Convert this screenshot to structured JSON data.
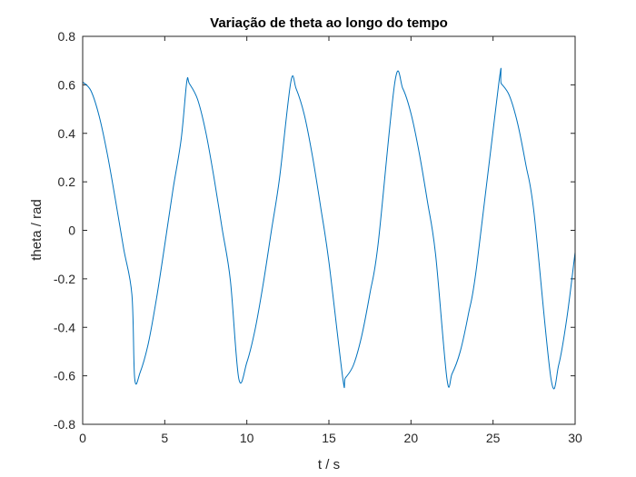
{
  "chart_data": {
    "type": "line",
    "title": "Variação de theta ao longo do tempo",
    "xlabel": "t / s",
    "ylabel": "theta / rad",
    "xlim": [
      0,
      30
    ],
    "ylim": [
      -0.8,
      0.8
    ],
    "xticks": [
      0,
      5,
      10,
      15,
      20,
      25,
      30
    ],
    "yticks": [
      0.8,
      0.6,
      0.4,
      0.2,
      0,
      -0.2,
      -0.4,
      -0.6,
      -0.8
    ],
    "xtick_labels": [
      "0",
      "5",
      "10",
      "15",
      "20",
      "25",
      "30"
    ],
    "ytick_labels": [
      "0.8",
      "0.6",
      "0.4",
      "0.2",
      "0",
      "-0.2",
      "-0.4",
      "-0.6",
      "-0.8"
    ],
    "grid": false,
    "box": true,
    "series": [
      {
        "color": "#0072bd",
        "x": [
          0,
          0.5,
          1,
          1.5,
          2,
          2.5,
          3,
          3.17,
          3.5,
          4,
          4.5,
          5,
          5.5,
          6,
          6.34,
          6.5,
          7,
          7.5,
          8,
          8.5,
          9,
          9.51,
          10,
          10.5,
          11,
          11.5,
          12,
          12.68,
          13,
          13.5,
          14,
          14.5,
          15,
          15.85,
          16,
          16.5,
          17,
          17.5,
          18,
          19.02,
          19.5,
          20,
          20.5,
          21,
          21.5,
          22.19,
          22.5,
          23,
          23.5,
          24,
          25.36,
          25.5,
          26,
          26.5,
          27,
          27.5,
          28.53,
          29,
          29.5,
          30
        ],
        "y": [
          0.612,
          0.576,
          0.472,
          0.315,
          0.124,
          -0.077,
          -0.266,
          -0.612,
          -0.586,
          -0.466,
          -0.28,
          -0.06,
          0.168,
          0.376,
          0.612,
          0.605,
          0.54,
          0.405,
          0.217,
          0.005,
          -0.208,
          -0.612,
          -0.545,
          -0.41,
          -0.22,
          0.0,
          0.219,
          0.612,
          0.585,
          0.477,
          0.305,
          0.095,
          -0.13,
          -0.612,
          -0.609,
          -0.555,
          -0.435,
          -0.26,
          -0.055,
          0.612,
          0.585,
          0.482,
          0.32,
          0.12,
          -0.1,
          -0.612,
          -0.592,
          -0.5,
          -0.345,
          -0.15,
          0.612,
          0.605,
          0.555,
          0.44,
          0.27,
          0.07,
          -0.612,
          -0.555,
          -0.36,
          -0.09
        ]
      }
    ]
  }
}
